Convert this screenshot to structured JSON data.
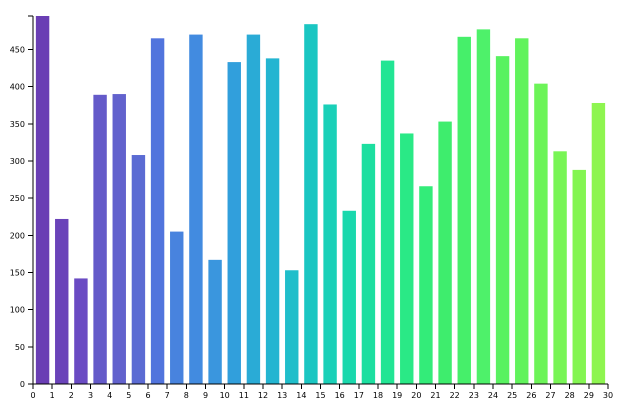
{
  "chart_data": {
    "type": "bar",
    "title": "",
    "xlabel": "",
    "ylabel": "",
    "categories": [
      "0",
      "1",
      "2",
      "3",
      "4",
      "5",
      "6",
      "7",
      "8",
      "9",
      "10",
      "11",
      "12",
      "13",
      "14",
      "15",
      "16",
      "17",
      "18",
      "19",
      "20",
      "21",
      "22",
      "23",
      "24",
      "25",
      "26",
      "27",
      "28",
      "29"
    ],
    "values": [
      495,
      222,
      142,
      389,
      390,
      308,
      465,
      205,
      470,
      167,
      433,
      470,
      438,
      153,
      484,
      376,
      233,
      323,
      435,
      337,
      266,
      353,
      467,
      477,
      441,
      465,
      404,
      313,
      288,
      378
    ],
    "xlim": [
      0,
      30
    ],
    "ylim": [
      0,
      495
    ],
    "x_ticks": [
      "0",
      "1",
      "2",
      "3",
      "4",
      "5",
      "6",
      "7",
      "8",
      "9",
      "10",
      "11",
      "12",
      "13",
      "14",
      "15",
      "16",
      "17",
      "18",
      "19",
      "20",
      "21",
      "22",
      "23",
      "24",
      "25",
      "26",
      "27",
      "28",
      "29",
      "30"
    ],
    "y_ticks": [
      "0",
      "50",
      "100",
      "150",
      "200",
      "250",
      "300",
      "350",
      "400",
      "450"
    ],
    "colors": {
      "scheme": "rainbow purple-to-green",
      "bars": [
        "#6a3eb4",
        "#6a43b9",
        "#6a4bc3",
        "#645ac9",
        "#6262cd",
        "#5b6bd3",
        "#5174dd",
        "#4883de",
        "#428be0",
        "#3a96de",
        "#319fdc",
        "#2aabd6",
        "#23b5d1",
        "#1fbeca",
        "#1ac6c2",
        "#1ad0b8",
        "#1ad8ad",
        "#1cdfa0",
        "#22e594",
        "#2ae986",
        "#33ec79",
        "#3eed6d",
        "#46ef6a",
        "#4ef16a",
        "#58f260",
        "#61f35c",
        "#6cf458",
        "#78f555",
        "#84f552",
        "#8ef550"
      ]
    },
    "grid": false,
    "legend": "none"
  }
}
